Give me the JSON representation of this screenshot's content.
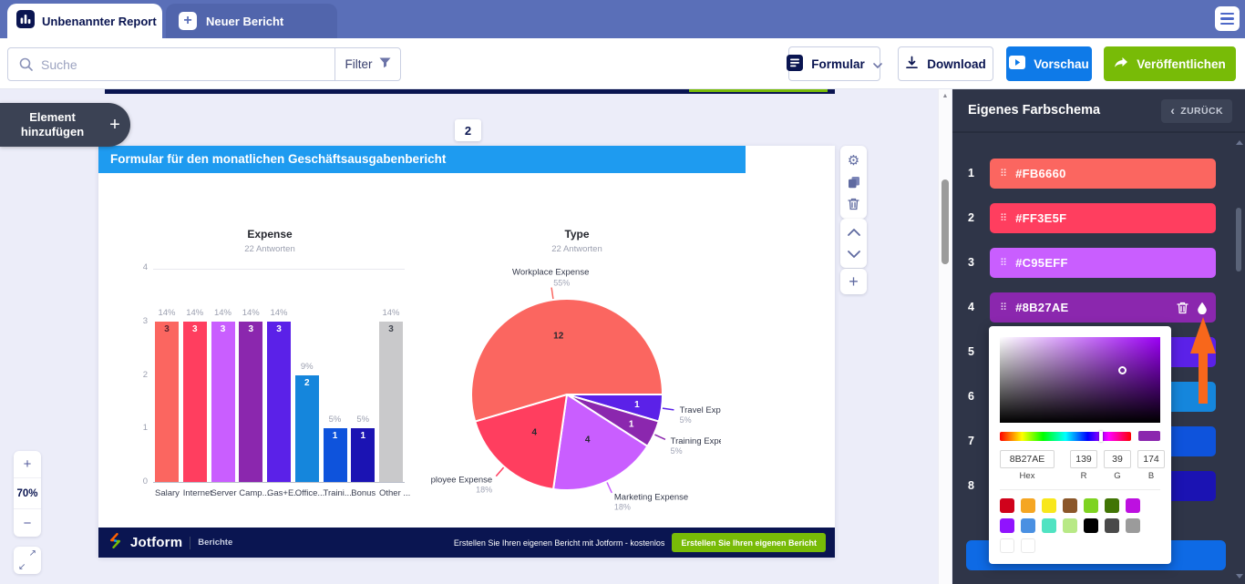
{
  "tabs": {
    "title": "Unbenannter Report",
    "new_report": "Neuer Bericht"
  },
  "toolbar": {
    "search_placeholder": "Suche",
    "filter_label": "Filter",
    "form_label": "Formular",
    "download_label": "Download",
    "preview_label": "Vorschau",
    "publish_label": "Veröffentlichen"
  },
  "add_element_label": "Element hinzufügen",
  "zoom_controls": {
    "zoom_in": "+",
    "zoom_level": "70%",
    "zoom_out": "−"
  },
  "page": {
    "number": "2",
    "header_title": "Formular für den monatlichen Geschäftsausgabenbericht",
    "footer": {
      "brand": "Jotform",
      "section": "Berichte",
      "promo": "Erstellen Sie Ihren eigenen Bericht mit Jotform - kostenlos",
      "cta": "Erstellen Sie Ihren eigenen Bericht"
    }
  },
  "sidebar": {
    "title": "Eigenes Farbschema",
    "back_label": "ZURÜCK",
    "colors": [
      {
        "num": "1",
        "hex": "#FB6660",
        "label": "#FB6660",
        "active": false
      },
      {
        "num": "2",
        "hex": "#FF3E5F",
        "label": "#FF3E5F",
        "active": false
      },
      {
        "num": "3",
        "hex": "#C95EFF",
        "label": "#C95EFF",
        "active": false
      },
      {
        "num": "4",
        "hex": "#8B27AE",
        "label": "#8B27AE",
        "active": true
      },
      {
        "num": "5",
        "hex": "#5B21E8",
        "label": "",
        "active": false
      },
      {
        "num": "6",
        "hex": "#1586DC",
        "label": "",
        "active": false
      },
      {
        "num": "7",
        "hex": "#0E53DC",
        "label": "",
        "active": false
      },
      {
        "num": "8",
        "hex": "#1B13B3",
        "label": "",
        "active": false
      }
    ]
  },
  "picker": {
    "hex": "8B27AE",
    "r": "139",
    "g": "39",
    "b": "174",
    "labels": {
      "hex": "Hex",
      "r": "R",
      "g": "G",
      "b": "B"
    },
    "current_color": "#8B27AE",
    "swatches": [
      "#D0021B",
      "#F5A623",
      "#F8E71C",
      "#8B572A",
      "#7ED321",
      "#417505",
      "#BD10E0",
      "#9013FE",
      "#4A90E2",
      "#50E3C2",
      "#B8E986",
      "#000000",
      "#4A4A4A",
      "#9B9B9B",
      "#FFFFFF",
      "#FFFFFF"
    ]
  },
  "annotation": {
    "arrow_color": "#F8671B"
  },
  "chart_data": [
    {
      "type": "bar",
      "title": "Expense",
      "subtitle": "22 Antworten",
      "categories": [
        "Salary",
        "Internet",
        "Server",
        "Camp...",
        "Gas+E...",
        "Office...",
        "Traini...",
        "Bonus",
        "Other ..."
      ],
      "values": [
        3,
        3,
        3,
        3,
        3,
        2,
        1,
        1,
        3
      ],
      "percent_labels": [
        "14%",
        "14%",
        "14%",
        "14%",
        "14%",
        "9%",
        "5%",
        "5%",
        "14%"
      ],
      "colors": [
        "#FB6660",
        "#FF3E5F",
        "#C95EFF",
        "#8B27AE",
        "#5B21E8",
        "#1586DC",
        "#0E53DC",
        "#1B13B3",
        "#C9C9CB"
      ],
      "value_label_colors": [
        "#5A2430",
        "#FFFFFF",
        "#FFFFFF",
        "#FFFFFF",
        "#FFFFFF",
        "#FFFFFF",
        "#FFFFFF",
        "#FFFFFF",
        "#41454F"
      ],
      "xlabel": "",
      "ylabel": "",
      "ylim": [
        0,
        4
      ],
      "yticks": [
        0,
        1,
        2,
        3,
        4
      ],
      "grid": "top-line-and-baseline",
      "legend": "none"
    },
    {
      "type": "pie",
      "title": "Type",
      "subtitle": "22 Antworten",
      "total": 22,
      "start_angle": "east",
      "direction": "clockwise",
      "slices": [
        {
          "label": "Travel Expens",
          "value": 1,
          "pct": "5%",
          "color": "#5B21E8",
          "value_label_color": "#FFFFFF"
        },
        {
          "label": "Training Expense",
          "value": 1,
          "pct": "5%",
          "color": "#8B27AE",
          "value_label_color": "#FFFFFF"
        },
        {
          "label": "Marketing Expense",
          "value": 4,
          "pct": "18%",
          "color": "#C95EFF",
          "value_label_color": "#26282F"
        },
        {
          "label": "Employee Expense",
          "value": 4,
          "pct": "18%",
          "color": "#FF3E5F",
          "value_label_color": "#26282F"
        },
        {
          "label": "Workplace Expense",
          "value": 12,
          "pct": "55%",
          "color": "#FB6660",
          "value_label_color": "#26282F"
        }
      ]
    }
  ]
}
